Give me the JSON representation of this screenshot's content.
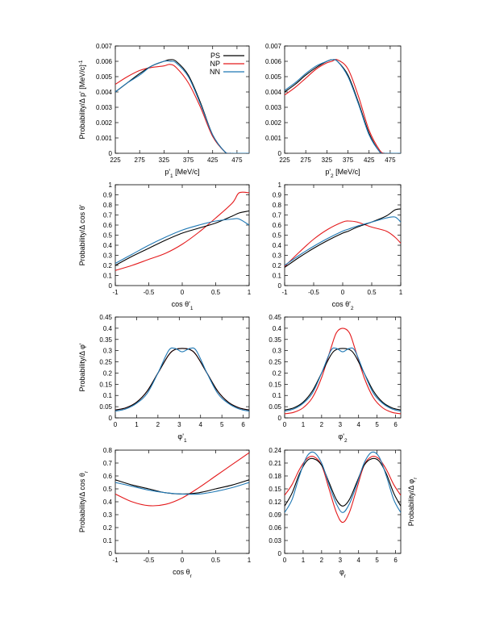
{
  "colors": {
    "PS": "#000000",
    "NP": "#e41a1c",
    "NN": "#1f78b4"
  },
  "legend": {
    "entries": [
      "PS",
      "NP",
      "NN"
    ],
    "placement": "top-right of first panel"
  },
  "chart_data": [
    {
      "id": "p1",
      "type": "line",
      "xlabel": "p'₁ [MeV/c]",
      "ylabel": "Probability/Δ p' [MeV/c]⁻¹",
      "xlim": [
        225,
        500
      ],
      "ylim": [
        0,
        0.007
      ],
      "xticks": [
        "225",
        "275",
        "325",
        "375",
        "425",
        "475"
      ],
      "yticks": [
        "0",
        "0.001",
        "0.002",
        "0.003",
        "0.004",
        "0.005",
        "0.006",
        "0.007"
      ],
      "x": [
        225,
        250,
        275,
        300,
        325,
        337,
        350,
        375,
        400,
        425,
        450,
        462,
        475,
        500
      ],
      "series": [
        {
          "name": "PS",
          "values": [
            0.004,
            0.0046,
            0.0052,
            0.0057,
            0.006,
            0.0061,
            0.006,
            0.0051,
            0.0033,
            0.0012,
            0.0001,
            0.0,
            0.0,
            0.0
          ]
        },
        {
          "name": "NP",
          "values": [
            0.0045,
            0.005,
            0.0054,
            0.0056,
            0.0057,
            0.0058,
            0.0056,
            0.0046,
            0.003,
            0.0011,
            0.0001,
            0.0,
            0.0,
            0.0
          ]
        },
        {
          "name": "NN",
          "values": [
            0.004,
            0.0046,
            0.0051,
            0.0057,
            0.006,
            0.006,
            0.0059,
            0.005,
            0.0032,
            0.0012,
            0.0001,
            0.0,
            0.0,
            0.0
          ]
        }
      ]
    },
    {
      "id": "p2",
      "type": "line",
      "xlabel": "p'₂ [MeV/c]",
      "ylabel": "",
      "xlim": [
        225,
        500
      ],
      "ylim": [
        0,
        0.007
      ],
      "xticks": [
        "225",
        "275",
        "325",
        "375",
        "425",
        "475"
      ],
      "yticks": [
        "0",
        "0.001",
        "0.002",
        "0.003",
        "0.004",
        "0.005",
        "0.006",
        "0.007"
      ],
      "x": [
        225,
        250,
        275,
        300,
        325,
        337,
        350,
        375,
        400,
        425,
        450,
        462,
        475,
        500
      ],
      "series": [
        {
          "name": "PS",
          "values": [
            0.004,
            0.0045,
            0.0051,
            0.0056,
            0.006,
            0.0061,
            0.006,
            0.0051,
            0.0033,
            0.0013,
            0.0001,
            0.0,
            0.0,
            0.0
          ]
        },
        {
          "name": "NP",
          "values": [
            0.0038,
            0.0043,
            0.0049,
            0.0055,
            0.0059,
            0.006,
            0.0061,
            0.0055,
            0.0037,
            0.0015,
            0.0002,
            0.0,
            0.0,
            0.0
          ]
        },
        {
          "name": "NN",
          "values": [
            0.0041,
            0.0046,
            0.0052,
            0.0057,
            0.006,
            0.0061,
            0.006,
            0.005,
            0.0032,
            0.0012,
            0.0001,
            0.0,
            0.0,
            0.0
          ]
        }
      ]
    },
    {
      "id": "c1",
      "type": "line",
      "xlabel": "cos θ'₁",
      "ylabel": "Probability/Δ cos θ'",
      "xlim": [
        -1,
        1
      ],
      "ylim": [
        0,
        1
      ],
      "xticks": [
        "-1",
        "-0.5",
        "0",
        "0.5",
        "1"
      ],
      "yticks": [
        "0",
        "0.1",
        "0.2",
        "0.3",
        "0.4",
        "0.5",
        "0.6",
        "0.7",
        "0.8",
        "0.9",
        "1"
      ],
      "x": [
        -1,
        -0.75,
        -0.5,
        -0.25,
        0,
        0.25,
        0.5,
        0.75,
        0.85,
        1
      ],
      "series": [
        {
          "name": "PS",
          "values": [
            0.2,
            0.29,
            0.37,
            0.45,
            0.52,
            0.57,
            0.62,
            0.69,
            0.72,
            0.74
          ]
        },
        {
          "name": "NP",
          "values": [
            0.15,
            0.2,
            0.26,
            0.32,
            0.41,
            0.53,
            0.67,
            0.82,
            0.92,
            0.92
          ]
        },
        {
          "name": "NN",
          "values": [
            0.22,
            0.31,
            0.4,
            0.48,
            0.55,
            0.6,
            0.64,
            0.66,
            0.66,
            0.6
          ]
        }
      ]
    },
    {
      "id": "c2",
      "type": "line",
      "xlabel": "cos θ'₂",
      "ylabel": "",
      "xlim": [
        -1,
        1
      ],
      "ylim": [
        0,
        1
      ],
      "xticks": [
        "-1",
        "-0.5",
        "0",
        "0.5",
        "1"
      ],
      "yticks": [
        "0",
        "0.1",
        "0.2",
        "0.3",
        "0.4",
        "0.5",
        "0.6",
        "0.7",
        "0.8",
        "0.9",
        "1"
      ],
      "x": [
        -1,
        -0.75,
        -0.5,
        -0.25,
        0,
        0.1,
        0.25,
        0.5,
        0.75,
        0.9,
        1
      ],
      "series": [
        {
          "name": "PS",
          "values": [
            0.18,
            0.28,
            0.37,
            0.45,
            0.52,
            0.54,
            0.58,
            0.63,
            0.69,
            0.75,
            0.76
          ]
        },
        {
          "name": "NP",
          "values": [
            0.19,
            0.33,
            0.46,
            0.56,
            0.63,
            0.64,
            0.63,
            0.58,
            0.54,
            0.48,
            0.42
          ]
        },
        {
          "name": "NN",
          "values": [
            0.2,
            0.3,
            0.39,
            0.47,
            0.54,
            0.56,
            0.59,
            0.63,
            0.67,
            0.68,
            0.63
          ]
        }
      ]
    },
    {
      "id": "f1",
      "type": "line",
      "xlabel": "φ'₁",
      "ylabel": "Probability/Δ φ'",
      "xlim": [
        0,
        6.28
      ],
      "ylim": [
        0,
        0.45
      ],
      "xticks": [
        "0",
        "1",
        "2",
        "3",
        "4",
        "5",
        "6"
      ],
      "yticks": [
        "0",
        "0.05",
        "0.1",
        "0.15",
        "0.2",
        "0.25",
        "0.3",
        "0.35",
        "0.4",
        "0.45"
      ],
      "x": [
        0,
        0.5,
        1,
        1.5,
        2,
        2.5,
        2.8,
        3.14,
        3.5,
        3.8,
        4.3,
        4.8,
        5.3,
        5.8,
        6.28
      ],
      "series": [
        {
          "name": "PS",
          "values": [
            0.035,
            0.045,
            0.07,
            0.12,
            0.2,
            0.28,
            0.305,
            0.31,
            0.305,
            0.28,
            0.2,
            0.12,
            0.07,
            0.045,
            0.035
          ]
        },
        {
          "name": "NP",
          "values": [
            0.035,
            0.045,
            0.07,
            0.12,
            0.2,
            0.28,
            0.305,
            0.31,
            0.305,
            0.28,
            0.2,
            0.12,
            0.07,
            0.045,
            0.035
          ]
        },
        {
          "name": "NN",
          "values": [
            0.03,
            0.04,
            0.065,
            0.11,
            0.2,
            0.3,
            0.31,
            0.295,
            0.31,
            0.3,
            0.2,
            0.11,
            0.065,
            0.04,
            0.03
          ]
        }
      ]
    },
    {
      "id": "f2",
      "type": "line",
      "xlabel": "φ'₂",
      "ylabel": "",
      "xlim": [
        0,
        6.28
      ],
      "ylim": [
        0,
        0.45
      ],
      "xticks": [
        "0",
        "1",
        "2",
        "3",
        "4",
        "5",
        "6"
      ],
      "yticks": [
        "0",
        "0.05",
        "0.1",
        "0.15",
        "0.2",
        "0.25",
        "0.3",
        "0.35",
        "0.4",
        "0.45"
      ],
      "x": [
        0,
        0.5,
        1,
        1.5,
        2,
        2.5,
        2.8,
        3.14,
        3.5,
        3.8,
        4.3,
        4.8,
        5.3,
        5.8,
        6.28
      ],
      "series": [
        {
          "name": "PS",
          "values": [
            0.035,
            0.045,
            0.07,
            0.12,
            0.2,
            0.28,
            0.305,
            0.31,
            0.305,
            0.28,
            0.2,
            0.12,
            0.07,
            0.045,
            0.035
          ]
        },
        {
          "name": "NP",
          "values": [
            0.018,
            0.025,
            0.045,
            0.09,
            0.18,
            0.31,
            0.38,
            0.4,
            0.38,
            0.31,
            0.18,
            0.09,
            0.045,
            0.025,
            0.018
          ]
        },
        {
          "name": "NN",
          "values": [
            0.03,
            0.04,
            0.065,
            0.11,
            0.2,
            0.3,
            0.31,
            0.295,
            0.31,
            0.3,
            0.2,
            0.11,
            0.065,
            0.04,
            0.03
          ]
        }
      ]
    },
    {
      "id": "cr",
      "type": "line",
      "xlabel": "cos θr",
      "ylabel": "Probability/Δ cos θr",
      "xlim": [
        -1,
        1
      ],
      "ylim": [
        0,
        0.8
      ],
      "xticks": [
        "-1",
        "-0.5",
        "0",
        "0.5",
        "1"
      ],
      "yticks": [
        "0",
        "0.1",
        "0.2",
        "0.3",
        "0.4",
        "0.5",
        "0.6",
        "0.7",
        "0.8"
      ],
      "x": [
        -1,
        -0.75,
        -0.5,
        -0.25,
        0,
        0.25,
        0.5,
        0.75,
        1
      ],
      "series": [
        {
          "name": "PS",
          "values": [
            0.57,
            0.53,
            0.5,
            0.47,
            0.46,
            0.47,
            0.5,
            0.53,
            0.57
          ]
        },
        {
          "name": "NP",
          "values": [
            0.46,
            0.4,
            0.37,
            0.38,
            0.43,
            0.51,
            0.6,
            0.69,
            0.78
          ]
        },
        {
          "name": "NN",
          "values": [
            0.55,
            0.52,
            0.49,
            0.47,
            0.46,
            0.46,
            0.48,
            0.51,
            0.55
          ]
        }
      ]
    },
    {
      "id": "fr",
      "type": "line",
      "xlabel": "φr",
      "ylabel": "Probability/Δ φr",
      "ylabel_side": "right",
      "xlim": [
        0,
        6.28
      ],
      "ylim": [
        0,
        0.24
      ],
      "xticks": [
        "0",
        "1",
        "2",
        "3",
        "4",
        "5",
        "6"
      ],
      "yticks": [
        "0",
        "0.03",
        "0.06",
        "0.09",
        "0.12",
        "0.15",
        "0.18",
        "0.21",
        "0.24"
      ],
      "x": [
        0,
        0.4,
        0.8,
        1.2,
        1.57,
        2.0,
        2.4,
        2.8,
        3.14,
        3.5,
        3.9,
        4.3,
        4.71,
        5.1,
        5.5,
        5.9,
        6.28
      ],
      "series": [
        {
          "name": "PS",
          "values": [
            0.11,
            0.14,
            0.185,
            0.215,
            0.22,
            0.205,
            0.165,
            0.125,
            0.11,
            0.125,
            0.165,
            0.205,
            0.22,
            0.215,
            0.185,
            0.14,
            0.11
          ]
        },
        {
          "name": "NP",
          "values": [
            0.135,
            0.16,
            0.195,
            0.22,
            0.225,
            0.205,
            0.15,
            0.095,
            0.072,
            0.095,
            0.15,
            0.205,
            0.225,
            0.22,
            0.195,
            0.16,
            0.135
          ]
        },
        {
          "name": "NN",
          "values": [
            0.095,
            0.125,
            0.18,
            0.225,
            0.235,
            0.21,
            0.16,
            0.115,
            0.095,
            0.115,
            0.16,
            0.21,
            0.235,
            0.225,
            0.18,
            0.125,
            0.095
          ]
        }
      ]
    }
  ]
}
